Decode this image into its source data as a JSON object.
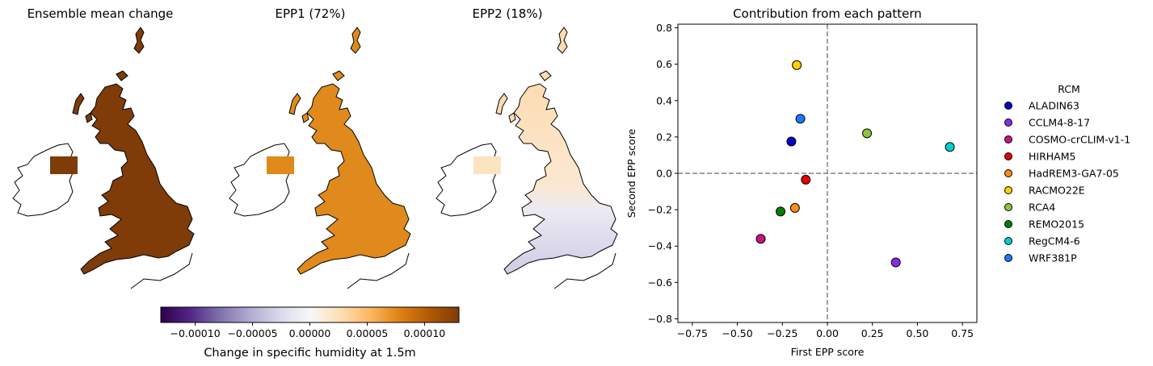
{
  "maps": [
    {
      "title": "Ensemble mean change",
      "fill": "#7f3b08",
      "south_fill": "#7f3b08"
    },
    {
      "title": "EPP1 (72%)",
      "fill": "#e0891c",
      "south_fill": "#e0891c"
    },
    {
      "title": "EPP2 (18%)",
      "fill": "#fde0b5",
      "south_fill": "#d6d4e9"
    }
  ],
  "colorbar": {
    "label": "Change in specific humidity at 1.5m",
    "ticks": [
      "−0.00010",
      "−0.00005",
      "0.00000",
      "0.00005",
      "0.00010"
    ],
    "tick_values": [
      -0.0001,
      -5e-05,
      0,
      5e-05,
      0.0001
    ],
    "range": [
      -0.00013,
      0.00013
    ],
    "colormap": [
      "#2d004b",
      "#542788",
      "#8073ac",
      "#b2abd2",
      "#d8daeb",
      "#f7f7f7",
      "#fee0b6",
      "#fdb863",
      "#e08214",
      "#b35806",
      "#7f3b08"
    ]
  },
  "chart_data": {
    "type": "scatter",
    "title": "Contribution from each pattern",
    "xlabel": "First EPP score",
    "ylabel": "Second EPP score",
    "xlim": [
      -0.83,
      0.83
    ],
    "ylim": [
      -0.82,
      0.82
    ],
    "xticks": [
      -0.75,
      -0.5,
      -0.25,
      0.0,
      0.25,
      0.5,
      0.75
    ],
    "xtick_labels": [
      "−0.75",
      "−0.50",
      "−0.25",
      "0.00",
      "0.25",
      "0.50",
      "0.75"
    ],
    "yticks": [
      -0.8,
      -0.6,
      -0.4,
      -0.2,
      0.0,
      0.2,
      0.4,
      0.6,
      0.8
    ],
    "ytick_labels": [
      "−0.8",
      "−0.6",
      "−0.4",
      "−0.2",
      "0.0",
      "0.2",
      "0.4",
      "0.6",
      "0.8"
    ],
    "reference_lines": {
      "x": 0,
      "y": 0,
      "style": "dashed",
      "color": "#808080"
    },
    "legend_title": "RCM",
    "legend_position": "right-outside",
    "points": [
      {
        "name": "ALADIN63",
        "x": -0.2,
        "y": 0.175,
        "color": "#0000c8"
      },
      {
        "name": "CCLM4-8-17",
        "x": 0.38,
        "y": -0.49,
        "color": "#8a2be2"
      },
      {
        "name": "COSMO-crCLIM-v1-1",
        "x": -0.37,
        "y": -0.36,
        "color": "#c71585"
      },
      {
        "name": "HIRHAM5",
        "x": -0.12,
        "y": -0.035,
        "color": "#e60000"
      },
      {
        "name": "HadREM3-GA7-05",
        "x": -0.18,
        "y": -0.19,
        "color": "#ff8c1a"
      },
      {
        "name": "RACMO22E",
        "x": -0.17,
        "y": 0.595,
        "color": "#ffd000"
      },
      {
        "name": "RCA4",
        "x": 0.22,
        "y": 0.22,
        "color": "#8cc63f"
      },
      {
        "name": "REMO2015",
        "x": -0.26,
        "y": -0.21,
        "color": "#008000"
      },
      {
        "name": "RegCM4-6",
        "x": 0.68,
        "y": 0.145,
        "color": "#00ced1"
      },
      {
        "name": "WRF381P",
        "x": -0.15,
        "y": 0.3,
        "color": "#1e78ff"
      }
    ]
  }
}
